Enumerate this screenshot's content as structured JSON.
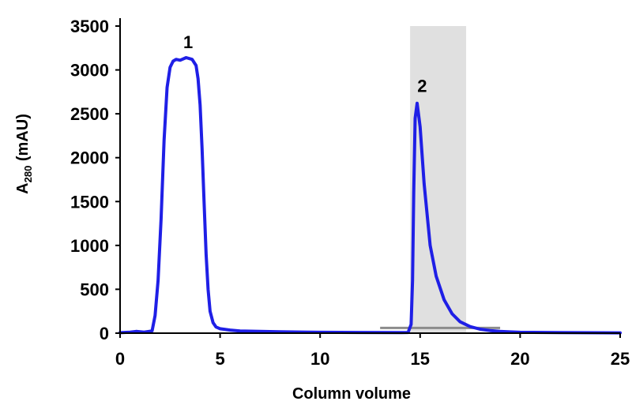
{
  "chart_data": {
    "type": "line",
    "xlabel": "Column volume",
    "ylabel": {
      "main": "A",
      "sub": "280",
      "suffix": " (mAU)"
    },
    "xlim": [
      0,
      25
    ],
    "ylim": [
      0,
      3500
    ],
    "xticks": [
      0,
      5,
      10,
      15,
      20,
      25
    ],
    "yticks": [
      0,
      500,
      1000,
      1500,
      2000,
      2500,
      3000,
      3500
    ],
    "grid": false,
    "series": [
      {
        "color": "#1f1fe6",
        "x": [
          0,
          0.5,
          0.8,
          1.2,
          1.6,
          1.75,
          1.9,
          2.05,
          2.2,
          2.35,
          2.5,
          2.65,
          2.8,
          3.0,
          3.3,
          3.6,
          3.8,
          3.9,
          4.0,
          4.1,
          4.2,
          4.3,
          4.4,
          4.5,
          4.65,
          4.8,
          5.0,
          5.5,
          6.0,
          8.0,
          10.0,
          12.0,
          14.0,
          14.4,
          14.55,
          14.62,
          14.68,
          14.75,
          14.85,
          15.0,
          15.2,
          15.5,
          15.8,
          16.2,
          16.6,
          17.0,
          17.5,
          18.0,
          18.5,
          19.0,
          19.5,
          20.0,
          22.0,
          25.0
        ],
        "y": [
          5,
          12,
          20,
          12,
          25,
          200,
          600,
          1300,
          2200,
          2800,
          3030,
          3100,
          3120,
          3110,
          3140,
          3120,
          3050,
          2900,
          2600,
          2100,
          1500,
          900,
          500,
          250,
          120,
          70,
          50,
          35,
          25,
          15,
          10,
          8,
          6,
          8,
          100,
          600,
          1600,
          2450,
          2620,
          2350,
          1700,
          1000,
          650,
          380,
          220,
          130,
          75,
          45,
          30,
          20,
          14,
          10,
          6,
          4
        ]
      }
    ],
    "bands": [
      {
        "x": [
          14.5,
          17.3
        ],
        "color": "#e0e0e0"
      }
    ],
    "baselines": [
      {
        "x": [
          13.0,
          19.0
        ],
        "y": 60,
        "color": "#8c8c8c"
      }
    ],
    "annotations": [
      {
        "label": "1",
        "x": 3.4,
        "y": 3250
      },
      {
        "label": "2",
        "x": 15.1,
        "y": 2750
      }
    ]
  }
}
